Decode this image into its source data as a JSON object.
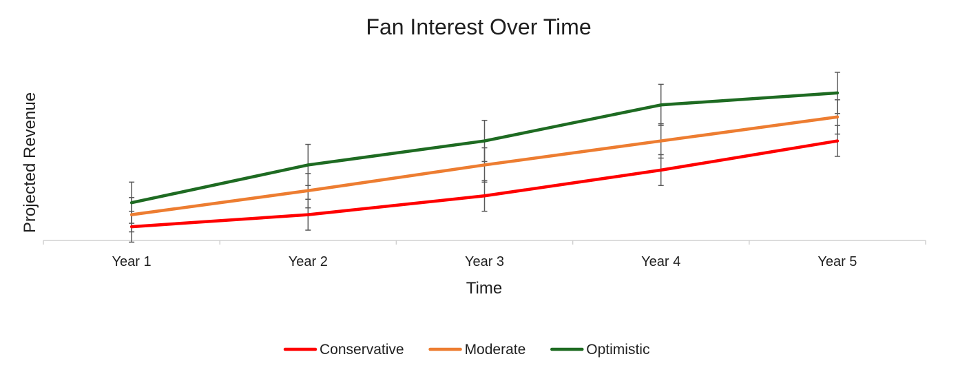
{
  "chart_data": {
    "type": "line",
    "title": "Fan Interest Over Time",
    "xlabel": "Time",
    "ylabel": "Projected Revenue",
    "categories": [
      "Year 1",
      "Year 2",
      "Year 3",
      "Year 4",
      "Year 5"
    ],
    "ylim": [
      0,
      100
    ],
    "y_ticks_visible": false,
    "grid": false,
    "error_bars": true,
    "legend_position": "bottom",
    "series": [
      {
        "name": "Conservative",
        "color": "#ff0000",
        "values": [
          8,
          15,
          26,
          41,
          58
        ],
        "error": [
          9,
          9,
          9,
          9,
          9
        ]
      },
      {
        "name": "Moderate",
        "color": "#ed7d31",
        "values": [
          15,
          29,
          44,
          58,
          72
        ],
        "error": [
          10,
          10,
          10,
          10,
          10
        ]
      },
      {
        "name": "Optimistic",
        "color": "#1e6b22",
        "values": [
          22,
          44,
          58,
          79,
          86
        ],
        "error": [
          12,
          12,
          12,
          12,
          12
        ]
      }
    ]
  }
}
